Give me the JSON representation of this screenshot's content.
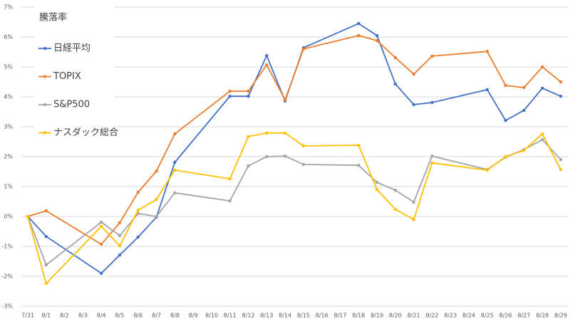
{
  "chart_data": {
    "type": "line",
    "legend_title": "騰落率",
    "legend_position": "upper left",
    "grid": true,
    "connect_gaps": true,
    "categories": [
      "7/31",
      "8/1",
      "8/2",
      "8/3",
      "8/4",
      "8/5",
      "8/6",
      "8/7",
      "8/8",
      "8/9",
      "8/10",
      "8/11",
      "8/12",
      "8/13",
      "8/14",
      "8/15",
      "8/16",
      "8/17",
      "8/18",
      "8/19",
      "8/20",
      "8/21",
      "8/22",
      "8/23",
      "8/24",
      "8/25",
      "8/26",
      "8/27",
      "8/28",
      "8/29"
    ],
    "ylim": [
      -3,
      7
    ],
    "yticks": [
      {
        "value": -3,
        "label": "-3%"
      },
      {
        "value": -2,
        "label": "-2%"
      },
      {
        "value": -1,
        "label": "-1%"
      },
      {
        "value": 0,
        "label": "0%"
      },
      {
        "value": 1,
        "label": "1%"
      },
      {
        "value": 2,
        "label": "2%"
      },
      {
        "value": 3,
        "label": "3%"
      },
      {
        "value": 4,
        "label": "4%"
      },
      {
        "value": 5,
        "label": "5%"
      },
      {
        "value": 6,
        "label": "6%"
      },
      {
        "value": 7,
        "label": "7%"
      }
    ],
    "series": [
      {
        "name": "日経平均",
        "color": "#4472c4",
        "values": [
          0,
          -0.67,
          null,
          null,
          -1.9,
          -1.29,
          -0.69,
          -0.02,
          1.81,
          null,
          null,
          4.02,
          4.02,
          5.38,
          3.86,
          5.64,
          null,
          null,
          6.45,
          6.05,
          4.43,
          3.74,
          3.81,
          null,
          null,
          4.24,
          3.21,
          3.55,
          4.29,
          4.02
        ]
      },
      {
        "name": "TOPIX",
        "color": "#ed7d31",
        "values": [
          0,
          0.19,
          null,
          null,
          -0.93,
          -0.21,
          0.81,
          1.52,
          2.76,
          null,
          null,
          4.19,
          4.19,
          5.07,
          3.9,
          5.6,
          null,
          null,
          6.05,
          5.88,
          5.31,
          4.76,
          5.36,
          null,
          null,
          5.52,
          4.38,
          4.31,
          5.0,
          4.5
        ]
      },
      {
        "name": "S&P500",
        "color": "#a5a5a5",
        "values": [
          0,
          -1.62,
          null,
          null,
          -0.19,
          -0.64,
          0.1,
          0.0,
          0.79,
          null,
          null,
          0.52,
          1.69,
          2.0,
          2.02,
          1.74,
          null,
          null,
          1.71,
          1.14,
          0.88,
          0.48,
          2.02,
          null,
          null,
          1.57,
          1.98,
          2.24,
          2.57,
          1.9
        ]
      },
      {
        "name": "ナスダック総合",
        "color": "#ffc000",
        "values": [
          0,
          -2.24,
          null,
          null,
          -0.33,
          -0.98,
          0.21,
          0.57,
          1.55,
          null,
          null,
          1.26,
          2.67,
          2.79,
          2.79,
          2.36,
          null,
          null,
          2.38,
          0.9,
          0.24,
          -0.1,
          1.79,
          null,
          null,
          1.55,
          2.0,
          2.21,
          2.76,
          1.57
        ]
      }
    ]
  }
}
